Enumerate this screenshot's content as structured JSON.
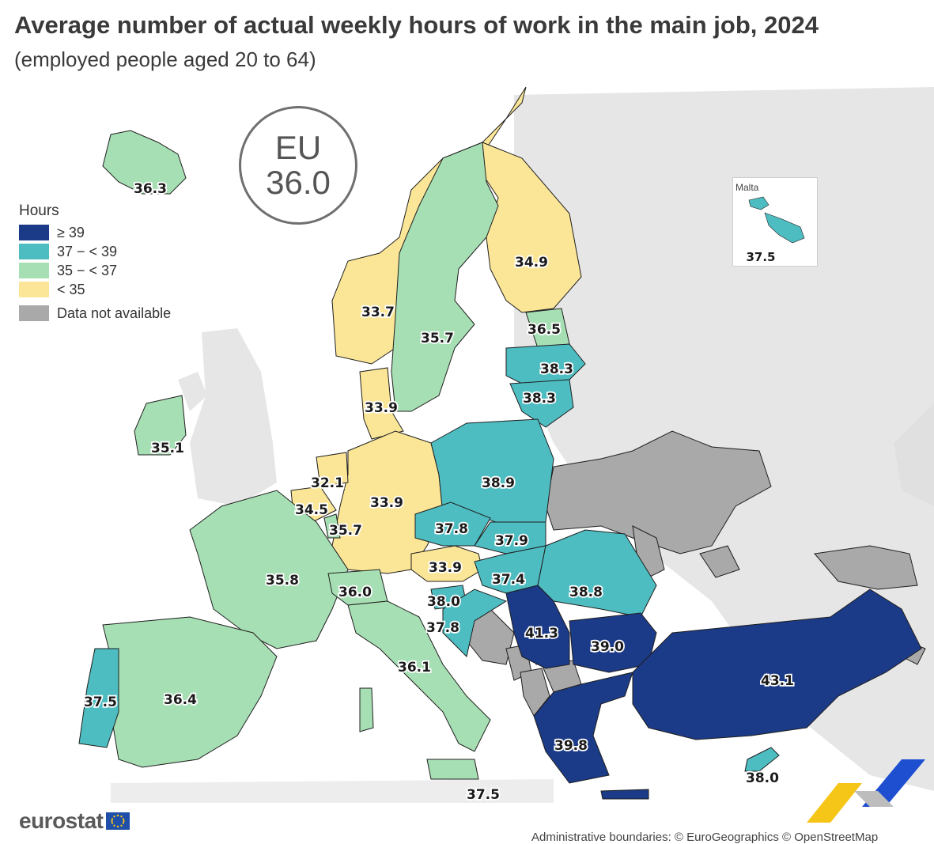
{
  "title": "Average number of actual weekly hours of work in the main job, 2024",
  "subtitle": "(employed people aged 20 to 64)",
  "eu_badge": {
    "label": "EU",
    "value": "36.0"
  },
  "legend": {
    "title": "Hours",
    "items": [
      {
        "label": "≥ 39",
        "color": "#1b3a87"
      },
      {
        "label": "37 − < 39",
        "color": "#4ebdc2"
      },
      {
        "label": "35 − < 37",
        "color": "#a7dfb4"
      },
      {
        "label": "< 35",
        "color": "#fbe697"
      },
      {
        "label": "Data not available",
        "color": "#a9a9a9"
      }
    ]
  },
  "map_data": {
    "regions": [
      {
        "name": "Iceland",
        "value": 36.3
      },
      {
        "name": "Norway",
        "value": 33.7
      },
      {
        "name": "Sweden",
        "value": 35.7
      },
      {
        "name": "Finland",
        "value": 34.9
      },
      {
        "name": "Estonia",
        "value": 36.5
      },
      {
        "name": "Latvia",
        "value": 38.3
      },
      {
        "name": "Lithuania",
        "value": 38.3
      },
      {
        "name": "Denmark",
        "value": 33.9
      },
      {
        "name": "Ireland",
        "value": 35.1
      },
      {
        "name": "Netherlands",
        "value": 32.1
      },
      {
        "name": "Belgium",
        "value": 34.5
      },
      {
        "name": "Luxembourg",
        "value": 35.7
      },
      {
        "name": "Germany",
        "value": 33.9
      },
      {
        "name": "Poland",
        "value": 38.9
      },
      {
        "name": "Czechia",
        "value": 37.8
      },
      {
        "name": "Slovakia",
        "value": 37.9
      },
      {
        "name": "Austria",
        "value": 33.9
      },
      {
        "name": "Hungary",
        "value": 37.4
      },
      {
        "name": "Romania",
        "value": 38.8
      },
      {
        "name": "France",
        "value": 35.8
      },
      {
        "name": "Switzerland",
        "value": 36.0
      },
      {
        "name": "Slovenia",
        "value": 38.0
      },
      {
        "name": "Croatia",
        "value": 37.8
      },
      {
        "name": "Serbia",
        "value": 41.3
      },
      {
        "name": "Bulgaria",
        "value": 39.0
      },
      {
        "name": "Türkiye",
        "value": 43.1
      },
      {
        "name": "Portugal",
        "value": 37.5
      },
      {
        "name": "Spain",
        "value": 36.4
      },
      {
        "name": "Italy",
        "value": 36.1
      },
      {
        "name": "Greece",
        "value": 39.8
      },
      {
        "name": "Malta",
        "value": 37.5
      },
      {
        "name": "Cyprus",
        "value": 38.0
      }
    ],
    "value_labels": [
      "36.3",
      "33.7",
      "35.7",
      "34.9",
      "36.5",
      "38.3",
      "38.3",
      "33.9",
      "35.1",
      "32.1",
      "34.5",
      "35.7",
      "33.9",
      "38.9",
      "37.8",
      "37.9",
      "33.9",
      "37.4",
      "38.8",
      "35.8",
      "36.0",
      "38.0",
      "37.8",
      "41.3",
      "39.0",
      "43.1",
      "37.5",
      "36.4",
      "36.1",
      "39.8",
      "37.5",
      "38.0",
      "37.5"
    ]
  },
  "inset": {
    "name": "Malta"
  },
  "branding": {
    "logo_text": "eurostat"
  },
  "credit": "Administrative boundaries: © EuroGeographics © OpenStreetMap"
}
